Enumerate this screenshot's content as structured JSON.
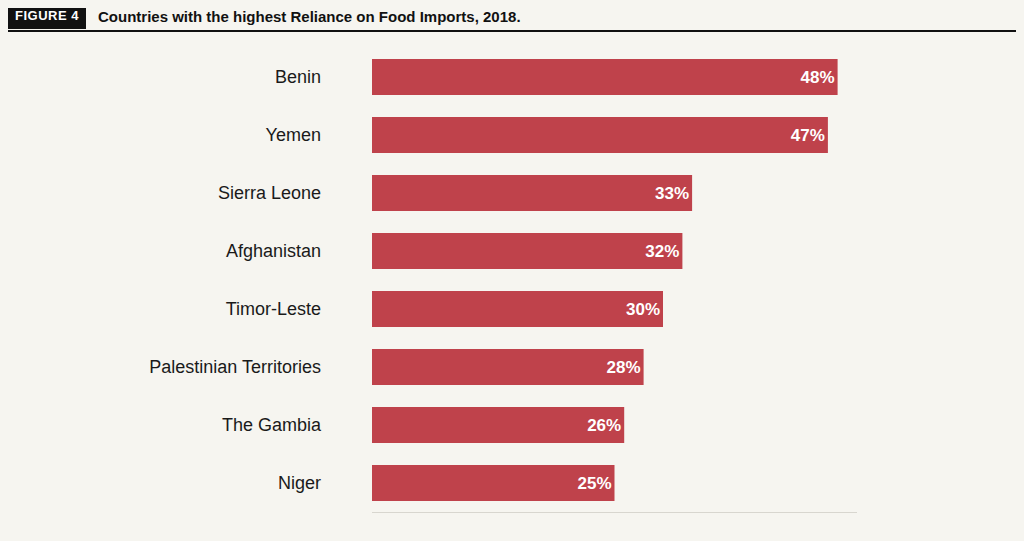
{
  "chart_data": {
    "type": "bar",
    "orientation": "horizontal",
    "figure_label": "FIGURE 4",
    "title": "Countries with the highest Reliance on Food Imports, 2018.",
    "categories": [
      "Benin",
      "Yemen",
      "Sierra Leone",
      "Afghanistan",
      "Timor-Leste",
      "Palestinian Territories",
      "The Gambia",
      "Niger"
    ],
    "values": [
      48,
      47,
      33,
      32,
      30,
      28,
      26,
      25
    ],
    "value_labels": [
      "48%",
      "47%",
      "33%",
      "32%",
      "30%",
      "28%",
      "26%",
      "25%"
    ],
    "color": "#bf424b",
    "xlim": [
      0,
      50
    ],
    "xticks": [],
    "grid": false,
    "data_labels": true,
    "tick_labels": "y"
  }
}
